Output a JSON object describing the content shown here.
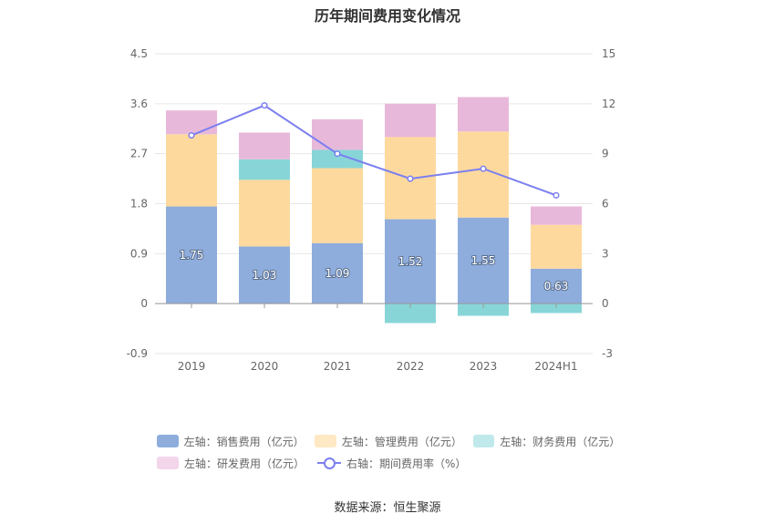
{
  "chart_data": {
    "type": "bar",
    "stacked": true,
    "title": "历年期间费用变化情况",
    "categories": [
      "2019",
      "2020",
      "2021",
      "2022",
      "2023",
      "2024H1"
    ],
    "left_axis": {
      "ylim": [
        -0.9,
        4.5
      ],
      "ticks": [
        "4.5",
        "3.6",
        "2.7",
        "1.8",
        "0.9",
        "0",
        "-0.9"
      ]
    },
    "right_axis": {
      "ylim": [
        -3,
        15
      ],
      "ticks": [
        "15",
        "12",
        "9",
        "6",
        "3",
        "0",
        "-3"
      ]
    },
    "series": [
      {
        "name": "左轴：销售费用（亿元）",
        "axis": "left",
        "color": "#8eaddc",
        "values": [
          1.75,
          1.03,
          1.09,
          1.52,
          1.55,
          0.63
        ],
        "labels": [
          "1.75",
          "1.03",
          "1.09",
          "1.52",
          "1.55",
          "0.63"
        ]
      },
      {
        "name": "左轴：管理费用（亿元）",
        "axis": "left",
        "color": "#fed99e",
        "values": [
          1.3,
          1.2,
          1.35,
          1.48,
          1.55,
          0.79
        ]
      },
      {
        "name": "左轴：财务费用（亿元）",
        "axis": "left",
        "color": "#88d5d8",
        "values": [
          0.0,
          0.37,
          0.33,
          -0.35,
          -0.22,
          -0.17
        ]
      },
      {
        "name": "左轴：研发费用（亿元）",
        "axis": "left",
        "color": "#e8b8da",
        "values": [
          0.43,
          0.48,
          0.55,
          0.6,
          0.62,
          0.33
        ]
      },
      {
        "name": "右轴：期间费用率（%）",
        "axis": "right",
        "type": "line",
        "color": "#7b7ff0",
        "values": [
          10.1,
          11.9,
          9.0,
          7.5,
          8.1,
          6.5
        ]
      }
    ],
    "grid": true,
    "legend_position": "bottom"
  },
  "source": "数据来源：恒生聚源"
}
